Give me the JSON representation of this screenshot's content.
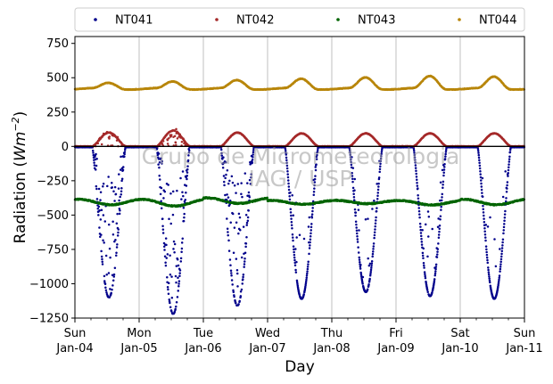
{
  "chart_data": {
    "type": "scatter",
    "xlabel": "Day",
    "ylabel_main": "Radiation (",
    "ylabel_unit": "Wm",
    "ylabel_exp": "−2",
    "ylabel_close": ")",
    "ylim": [
      -1250,
      800
    ],
    "yticks": [
      "−1250",
      "−1000",
      "−750",
      "−500",
      "−250",
      "0",
      "250",
      "500",
      "750"
    ],
    "xlim_days": [
      0,
      7
    ],
    "xticks": [
      {
        "day": "Sun",
        "date": "Jan-04"
      },
      {
        "day": "Mon",
        "date": "Jan-05"
      },
      {
        "day": "Tue",
        "date": "Jan-06"
      },
      {
        "day": "Wed",
        "date": "Jan-07"
      },
      {
        "day": "Thu",
        "date": "Jan-08"
      },
      {
        "day": "Fri",
        "date": "Jan-09"
      },
      {
        "day": "Sat",
        "date": "Jan-10"
      },
      {
        "day": "Sun",
        "date": "Jan-11"
      }
    ],
    "grid": "vertical",
    "legend_placement": "top, outside plot",
    "watermark": [
      "Grupo de Micrometeorologia",
      "IAG / USP"
    ],
    "series": [
      {
        "name": "NT041",
        "color": "#00008b",
        "daily_min": [
          -1100,
          -1220,
          -1160,
          -1110,
          -1060,
          -1090,
          -1110
        ],
        "night_level": -5
      },
      {
        "name": "NT042",
        "color": "#a52a2a",
        "daily_peak": [
          100,
          115,
          100,
          95,
          95,
          95,
          95
        ],
        "night_level": 0
      },
      {
        "name": "NT043",
        "color": "#006400",
        "base_level": -410,
        "daily_max": [
          -380,
          -380,
          -370,
          -390,
          -390,
          -390,
          -380
        ],
        "daily_min": [
          -430,
          -440,
          -420,
          -425,
          -420,
          -430,
          -430
        ]
      },
      {
        "name": "NT044",
        "color": "#b8860b",
        "night_level": 420,
        "daily_peak": [
          460,
          470,
          480,
          490,
          500,
          510,
          505
        ]
      }
    ]
  }
}
